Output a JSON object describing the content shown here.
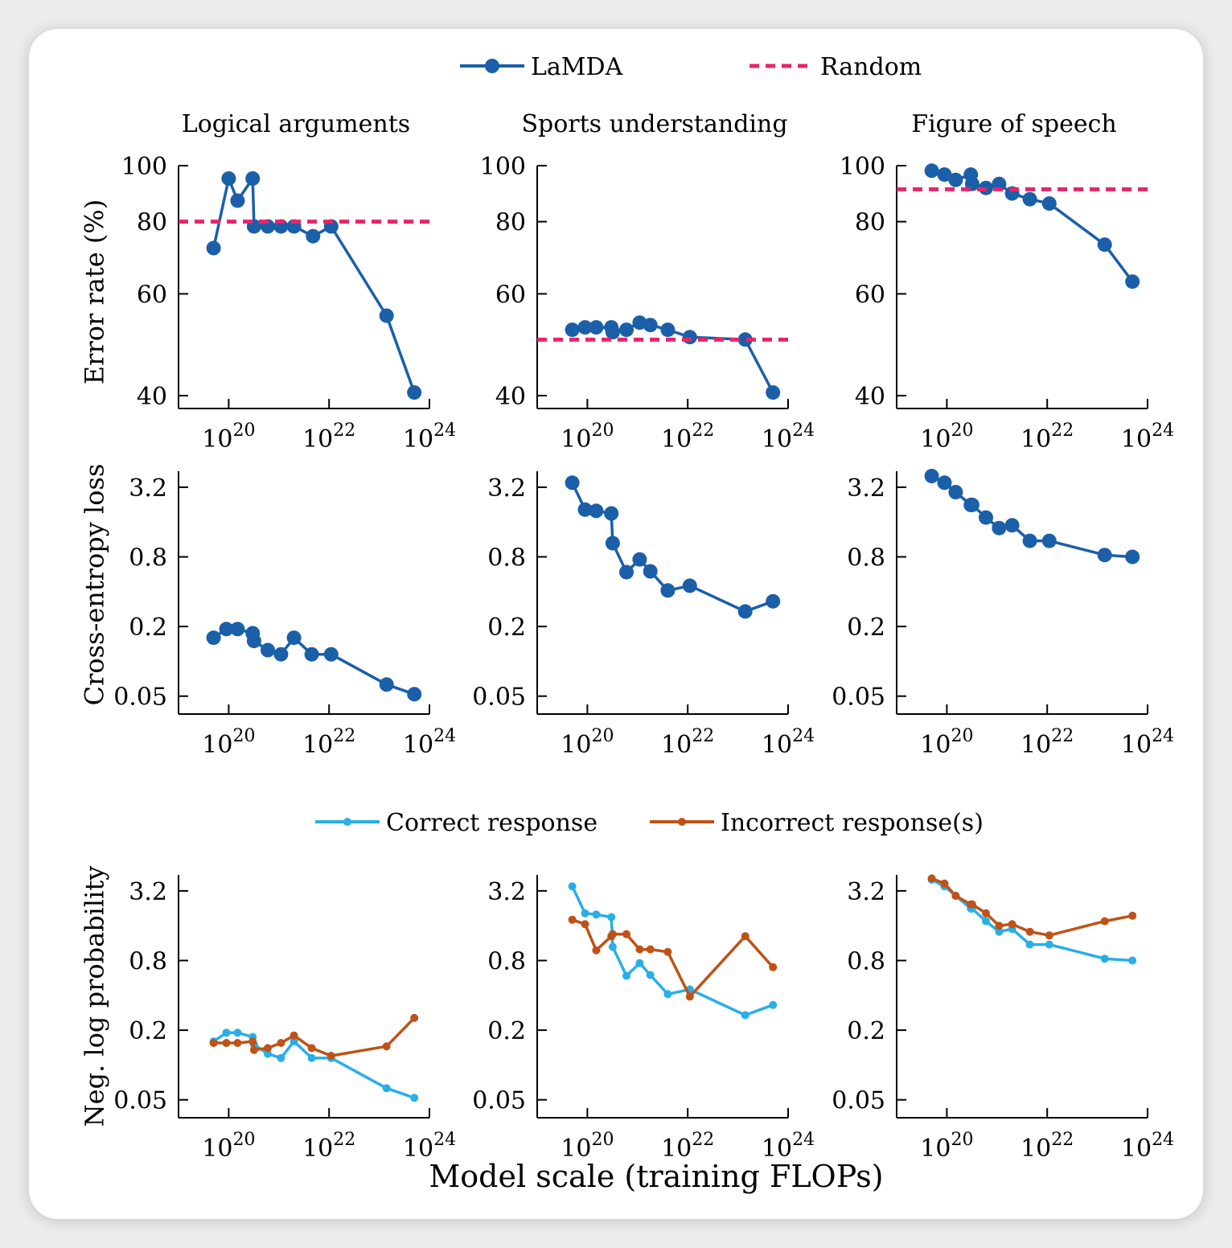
{
  "legend_top": {
    "items": [
      {
        "label": "LaMDA",
        "color": "#1a5fa8",
        "style": "line-marker"
      },
      {
        "label": "Random",
        "color": "#e8246c",
        "style": "dashed"
      }
    ]
  },
  "legend_bottom": {
    "items": [
      {
        "label": "Correct response",
        "color": "#29aee8",
        "style": "line-marker"
      },
      {
        "label": "Incorrect response(s)",
        "color": "#bf5217",
        "style": "line-marker"
      }
    ]
  },
  "column_titles": [
    "Logical arguments",
    "Sports understanding",
    "Figure of speech"
  ],
  "row_ylabels": [
    "Error rate (%)",
    "Cross-entropy loss",
    "Neg. log probability"
  ],
  "xlabel": "Model scale (training FLOPs)",
  "x_ticks": [
    {
      "base": "10",
      "exp": "20",
      "log10": 20
    },
    {
      "base": "10",
      "exp": "22",
      "log10": 22
    },
    {
      "base": "10",
      "exp": "24",
      "log10": 24
    }
  ],
  "y_ticks": {
    "error": [
      "40",
      "60",
      "80",
      "100"
    ],
    "loss": [
      "0.05",
      "0.2",
      "0.8",
      "3.2"
    ]
  },
  "chart_data": [
    {
      "type": "line",
      "title": "Logical arguments",
      "ylabel": "Error rate (%)",
      "xscale": "log",
      "xlim": [
        1e+19,
        1e+24
      ],
      "yscale": "log",
      "ylim": [
        38,
        100
      ],
      "x": [
        5e+19,
        1e+20,
        1.5e+20,
        3e+20,
        3.2e+20,
        6e+20,
        1.1e+21,
        2e+21,
        4.8e+21,
        1.1e+22,
        1.4e+23,
        5e+23
      ],
      "series": [
        {
          "name": "LaMDA",
          "values": [
            72,
            95,
            87,
            95,
            78.5,
            78.5,
            78.5,
            78.5,
            75.5,
            78.5,
            55,
            40.5
          ]
        },
        {
          "name": "Random",
          "values": [
            80,
            80,
            80,
            80,
            80,
            80,
            80,
            80,
            80,
            80,
            80,
            80
          ]
        }
      ]
    },
    {
      "type": "line",
      "title": "Sports understanding",
      "ylabel": "",
      "xscale": "log",
      "xlim": [
        1e+19,
        1e+24
      ],
      "yscale": "log",
      "ylim": [
        38,
        100
      ],
      "x": [
        5e+19,
        9e+19,
        1.5e+20,
        3e+20,
        3.2e+20,
        6e+20,
        1.1e+21,
        1.8e+21,
        4e+21,
        1.1e+22,
        1.4e+23,
        5e+23
      ],
      "series": [
        {
          "name": "LaMDA",
          "values": [
            52,
            52.5,
            52.5,
            52.5,
            51.5,
            52,
            53.5,
            53,
            52,
            50.5,
            50,
            40.5
          ]
        },
        {
          "name": "Random",
          "values": [
            50,
            50,
            50,
            50,
            50,
            50,
            50,
            50,
            50,
            50,
            50,
            50
          ]
        }
      ]
    },
    {
      "type": "line",
      "title": "Figure of speech",
      "ylabel": "",
      "xscale": "log",
      "xlim": [
        1e+19,
        1e+24
      ],
      "yscale": "log",
      "ylim": [
        38,
        100
      ],
      "x": [
        5e+19,
        9e+19,
        1.5e+20,
        3e+20,
        3.2e+20,
        6e+20,
        1.1e+21,
        2e+21,
        4.5e+21,
        1.1e+22,
        1.4e+23,
        5e+23
      ],
      "series": [
        {
          "name": "LaMDA",
          "values": [
            98,
            96.5,
            94.5,
            96.5,
            93,
            91.5,
            93,
            89.5,
            87.5,
            86,
            73,
            63
          ]
        },
        {
          "name": "Random",
          "values": [
            91,
            91,
            91,
            91,
            91,
            91,
            91,
            91,
            91,
            91,
            91,
            91
          ]
        }
      ]
    },
    {
      "type": "line",
      "title": "",
      "ylabel": "Cross-entropy loss",
      "xscale": "log",
      "xlim": [
        1e+19,
        1e+24
      ],
      "yscale": "log",
      "ylim": [
        0.035,
        4.4
      ],
      "x": [
        5e+19,
        9e+19,
        1.5e+20,
        3e+20,
        3.2e+20,
        6e+20,
        1.1e+21,
        2e+21,
        4.5e+21,
        1.1e+22,
        1.4e+23,
        5e+23
      ],
      "series": [
        {
          "name": "LaMDA",
          "values": [
            0.16,
            0.19,
            0.19,
            0.175,
            0.15,
            0.125,
            0.115,
            0.16,
            0.115,
            0.115,
            0.063,
            0.052
          ]
        }
      ]
    },
    {
      "type": "line",
      "title": "",
      "ylabel": "",
      "xscale": "log",
      "xlim": [
        1e+19,
        1e+24
      ],
      "yscale": "log",
      "ylim": [
        0.035,
        4.4
      ],
      "x": [
        5e+19,
        9e+19,
        1.5e+20,
        3e+20,
        3.2e+20,
        6e+20,
        1.1e+21,
        1.8e+21,
        4e+21,
        1.1e+22,
        1.4e+23,
        5e+23
      ],
      "series": [
        {
          "name": "LaMDA",
          "values": [
            3.5,
            2.05,
            2.0,
            1.9,
            1.05,
            0.59,
            0.76,
            0.6,
            0.41,
            0.45,
            0.27,
            0.33
          ]
        }
      ]
    },
    {
      "type": "line",
      "title": "",
      "ylabel": "",
      "xscale": "log",
      "xlim": [
        1e+19,
        1e+24
      ],
      "yscale": "log",
      "ylim": [
        0.035,
        4.4
      ],
      "x": [
        5e+19,
        9e+19,
        1.5e+20,
        3e+20,
        3.2e+20,
        6e+20,
        1.1e+21,
        2e+21,
        4.5e+21,
        1.1e+22,
        1.4e+23,
        5e+23
      ],
      "series": [
        {
          "name": "LaMDA",
          "values": [
            4.0,
            3.5,
            2.9,
            2.25,
            2.25,
            1.75,
            1.42,
            1.5,
            1.1,
            1.1,
            0.83,
            0.8
          ]
        }
      ]
    },
    {
      "type": "line",
      "title": "",
      "ylabel": "Neg. log probability",
      "xscale": "log",
      "xlim": [
        1e+19,
        1e+24
      ],
      "yscale": "log",
      "ylim": [
        0.035,
        4.4
      ],
      "x": [
        5e+19,
        9e+19,
        1.5e+20,
        3e+20,
        3.2e+20,
        6e+20,
        1.1e+21,
        2e+21,
        4.5e+21,
        1.1e+22,
        1.4e+23,
        5e+23
      ],
      "series": [
        {
          "name": "Correct response",
          "values": [
            0.16,
            0.19,
            0.19,
            0.175,
            0.15,
            0.125,
            0.115,
            0.16,
            0.115,
            0.115,
            0.063,
            0.052
          ]
        },
        {
          "name": "Incorrect response(s)",
          "values": [
            0.155,
            0.155,
            0.155,
            0.16,
            0.135,
            0.14,
            0.155,
            0.18,
            0.14,
            0.12,
            0.145,
            0.255
          ]
        }
      ]
    },
    {
      "type": "line",
      "title": "",
      "ylabel": "",
      "xscale": "log",
      "xlim": [
        1e+19,
        1e+24
      ],
      "yscale": "log",
      "ylim": [
        0.035,
        4.4
      ],
      "x": [
        5e+19,
        9e+19,
        1.5e+20,
        3e+20,
        3.2e+20,
        6e+20,
        1.1e+21,
        1.8e+21,
        4e+21,
        1.1e+22,
        1.4e+23,
        5e+23
      ],
      "series": [
        {
          "name": "Correct response",
          "values": [
            3.5,
            2.05,
            2.0,
            1.9,
            1.05,
            0.59,
            0.76,
            0.6,
            0.41,
            0.45,
            0.27,
            0.33
          ]
        },
        {
          "name": "Incorrect response(s)",
          "values": [
            1.8,
            1.65,
            0.98,
            1.3,
            1.35,
            1.35,
            1.0,
            1.0,
            0.95,
            0.39,
            1.3,
            0.7
          ]
        }
      ]
    },
    {
      "type": "line",
      "title": "",
      "ylabel": "",
      "xscale": "log",
      "xlim": [
        1e+19,
        1e+24
      ],
      "yscale": "log",
      "ylim": [
        0.035,
        4.4
      ],
      "x": [
        5e+19,
        9e+19,
        1.5e+20,
        3e+20,
        3.2e+20,
        6e+20,
        1.1e+21,
        2e+21,
        4.5e+21,
        1.1e+22,
        1.4e+23,
        5e+23
      ],
      "series": [
        {
          "name": "Correct response",
          "values": [
            4.0,
            3.5,
            2.9,
            2.25,
            2.25,
            1.75,
            1.42,
            1.5,
            1.1,
            1.1,
            0.83,
            0.8
          ]
        },
        {
          "name": "Incorrect response(s)",
          "values": [
            4.1,
            3.7,
            2.9,
            2.45,
            2.45,
            2.05,
            1.6,
            1.65,
            1.42,
            1.32,
            1.75,
            1.95
          ]
        }
      ]
    }
  ]
}
